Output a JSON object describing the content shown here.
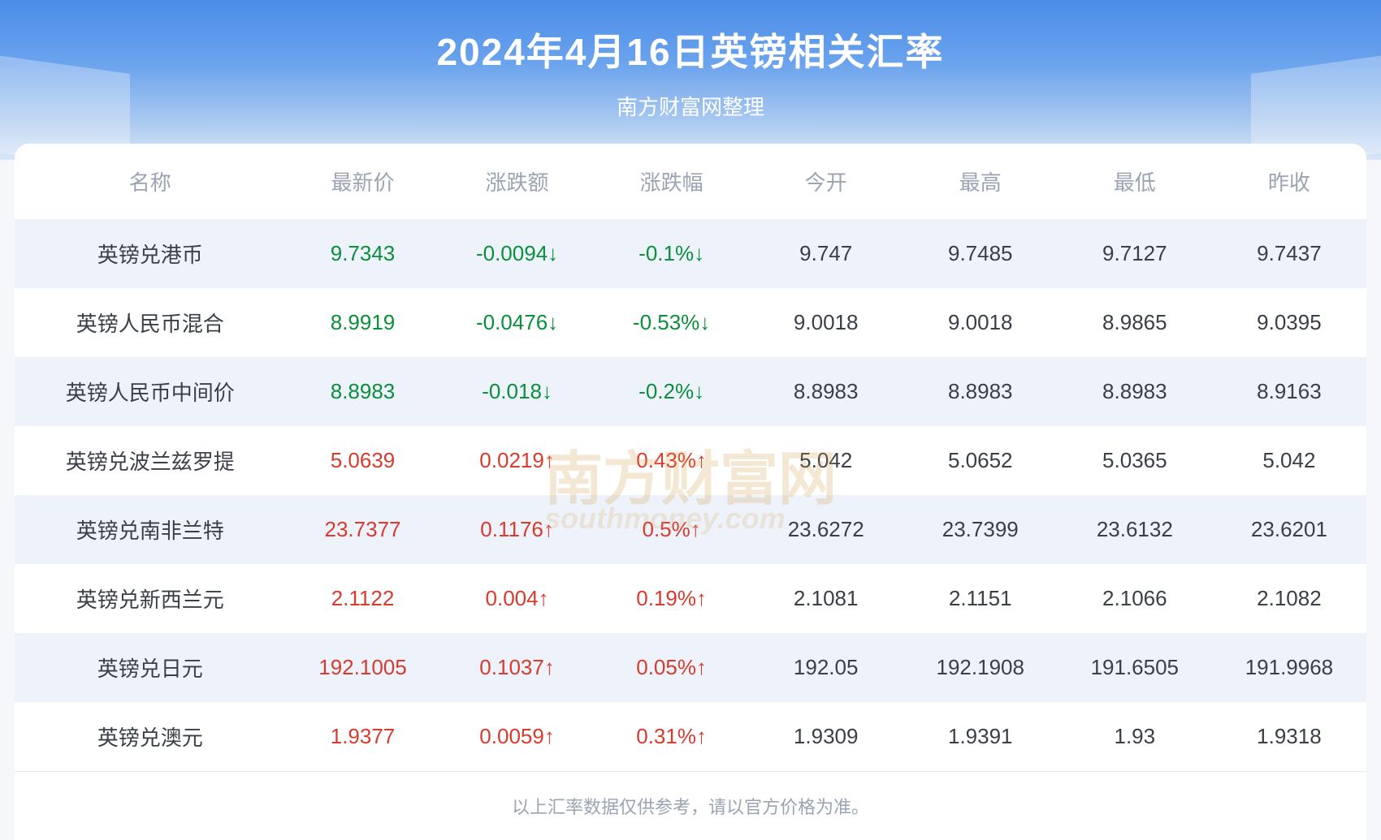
{
  "header": {
    "title": "2024年4月16日英镑相关汇率",
    "subtitle": "南方财富网整理"
  },
  "columns": [
    "名称",
    "最新价",
    "涨跌额",
    "涨跌幅",
    "今开",
    "最高",
    "最低",
    "昨收"
  ],
  "rows": [
    {
      "name": "英镑兑港币",
      "last": "9.7343",
      "chg": "-0.0094↓",
      "pct": "-0.1%↓",
      "open": "9.747",
      "high": "9.7485",
      "low": "9.7127",
      "prev": "9.7437",
      "dir": "down"
    },
    {
      "name": "英镑人民币混合",
      "last": "8.9919",
      "chg": "-0.0476↓",
      "pct": "-0.53%↓",
      "open": "9.0018",
      "high": "9.0018",
      "low": "8.9865",
      "prev": "9.0395",
      "dir": "down"
    },
    {
      "name": "英镑人民币中间价",
      "last": "8.8983",
      "chg": "-0.018↓",
      "pct": "-0.2%↓",
      "open": "8.8983",
      "high": "8.8983",
      "low": "8.8983",
      "prev": "8.9163",
      "dir": "down"
    },
    {
      "name": "英镑兑波兰兹罗提",
      "last": "5.0639",
      "chg": "0.0219↑",
      "pct": "0.43%↑",
      "open": "5.042",
      "high": "5.0652",
      "low": "5.0365",
      "prev": "5.042",
      "dir": "up"
    },
    {
      "name": "英镑兑南非兰特",
      "last": "23.7377",
      "chg": "0.1176↑",
      "pct": "0.5%↑",
      "open": "23.6272",
      "high": "23.7399",
      "low": "23.6132",
      "prev": "23.6201",
      "dir": "up"
    },
    {
      "name": "英镑兑新西兰元",
      "last": "2.1122",
      "chg": "0.004↑",
      "pct": "0.19%↑",
      "open": "2.1081",
      "high": "2.1151",
      "low": "2.1066",
      "prev": "2.1082",
      "dir": "up"
    },
    {
      "name": "英镑兑日元",
      "last": "192.1005",
      "chg": "0.1037↑",
      "pct": "0.05%↑",
      "open": "192.05",
      "high": "192.1908",
      "low": "191.6505",
      "prev": "191.9968",
      "dir": "up"
    },
    {
      "name": "英镑兑澳元",
      "last": "1.9377",
      "chg": "0.0059↑",
      "pct": "0.31%↑",
      "open": "1.9309",
      "high": "1.9391",
      "low": "1.93",
      "prev": "1.9318",
      "dir": "up"
    }
  ],
  "footer": "以上汇率数据仅供参考，请以官方价格为准。",
  "watermark": {
    "main": "南方财富网",
    "sub": "southmoney.com"
  },
  "colors": {
    "up": "#d83a2e",
    "down": "#0a8f3c",
    "text": "#3a3f47",
    "muted": "#9aa4b2",
    "rowStripe": "#eef3fb",
    "headerGradTop": "#4a8de8",
    "headerGradBot": "#d8e6f7"
  }
}
